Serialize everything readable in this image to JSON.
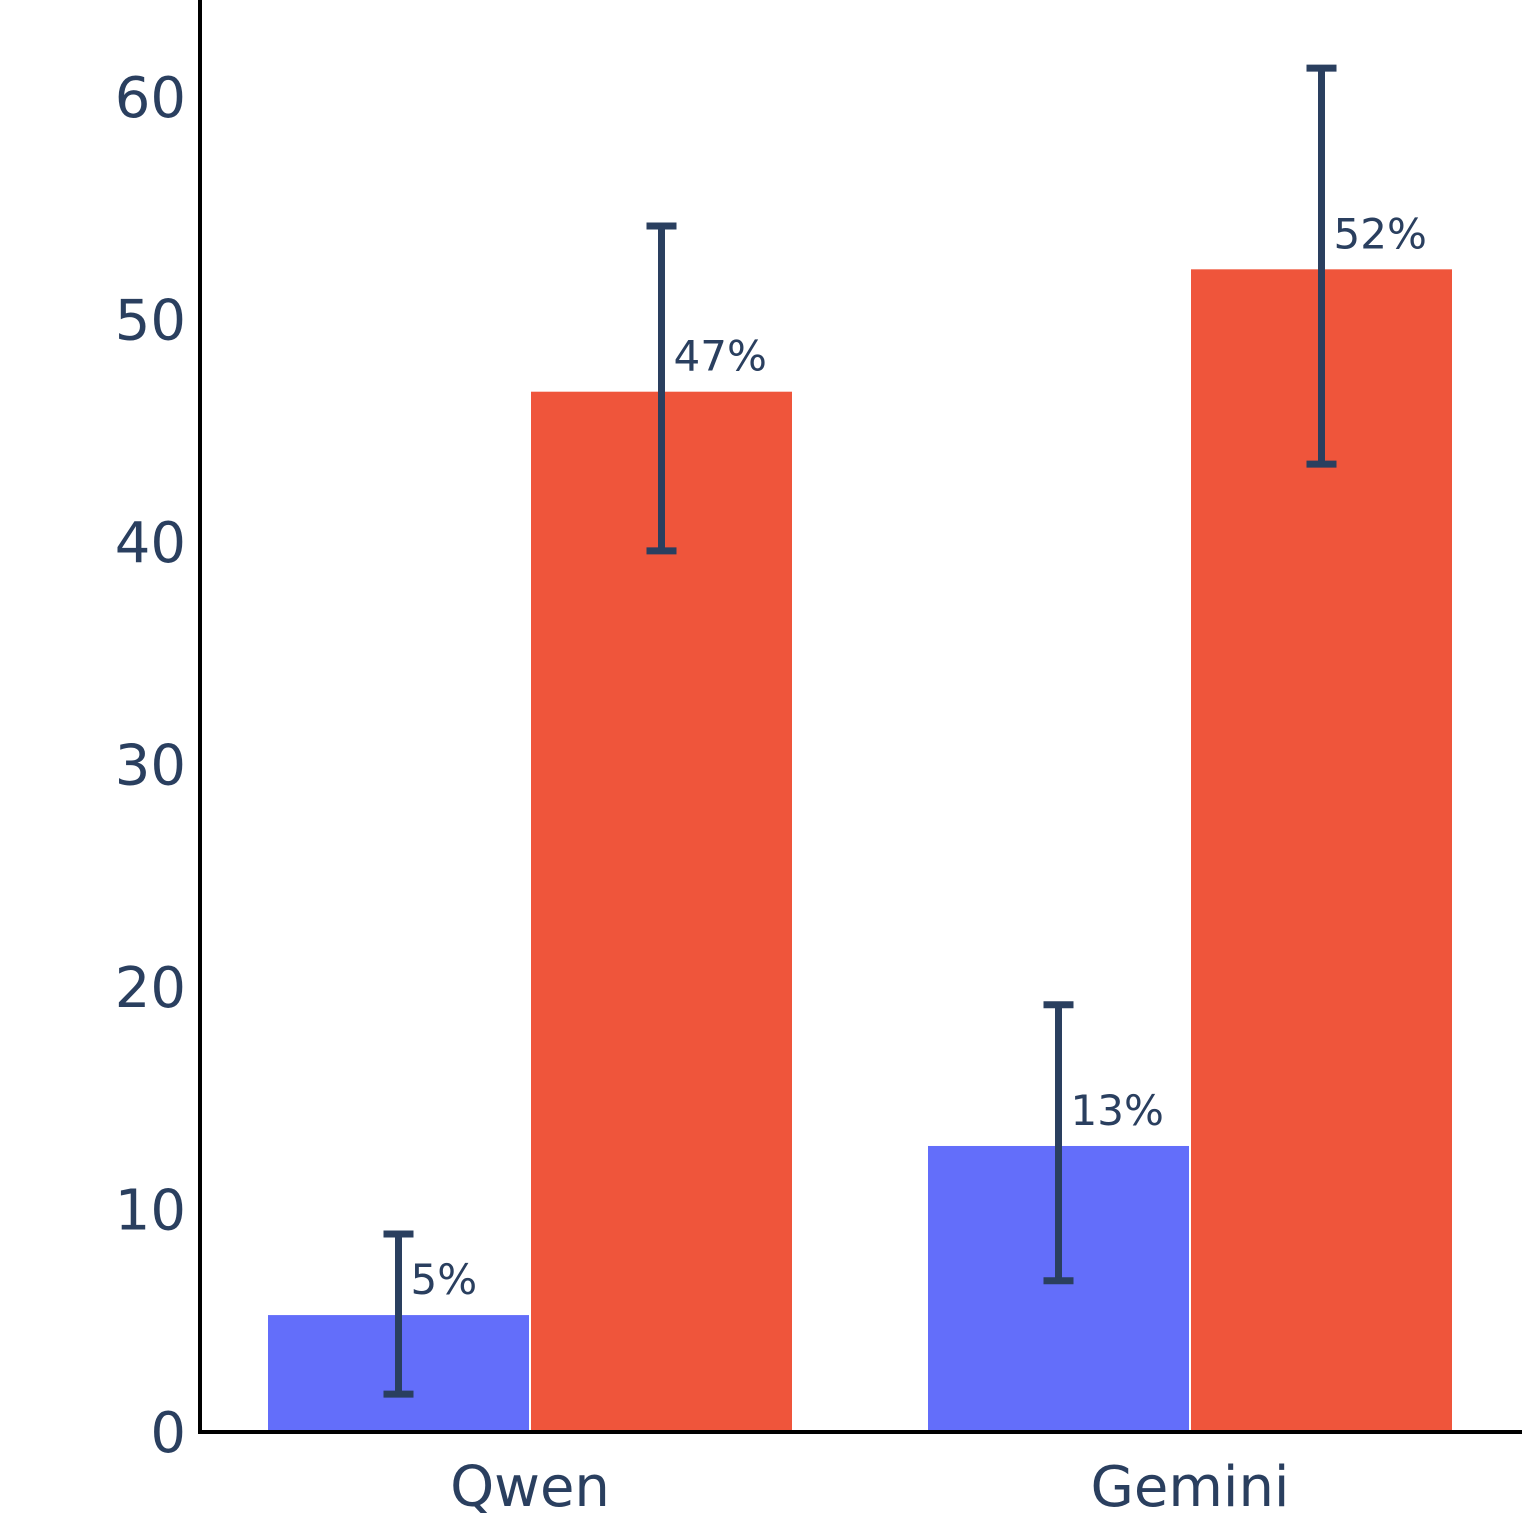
{
  "chart_data": {
    "type": "bar",
    "categories": [
      "Qwen",
      "Gemini"
    ],
    "series": [
      {
        "color": "#636efa",
        "values": [
          5.3,
          12.9
        ],
        "labels": [
          "5%",
          "13%"
        ],
        "error_low": [
          1.7,
          6.8
        ],
        "error_high": [
          8.9,
          19.2
        ]
      },
      {
        "color": "#ef553b",
        "values": [
          46.8,
          52.3
        ],
        "labels": [
          "47%",
          "52%"
        ],
        "error_low": [
          39.6,
          43.5
        ],
        "error_high": [
          54.2,
          61.3
        ]
      }
    ],
    "yticks": [
      0,
      10,
      20,
      30,
      40,
      50,
      60
    ],
    "ylim": [
      0,
      64.5
    ],
    "grid": false,
    "legend": "none",
    "title": "",
    "xlabel": "",
    "ylabel": ""
  }
}
